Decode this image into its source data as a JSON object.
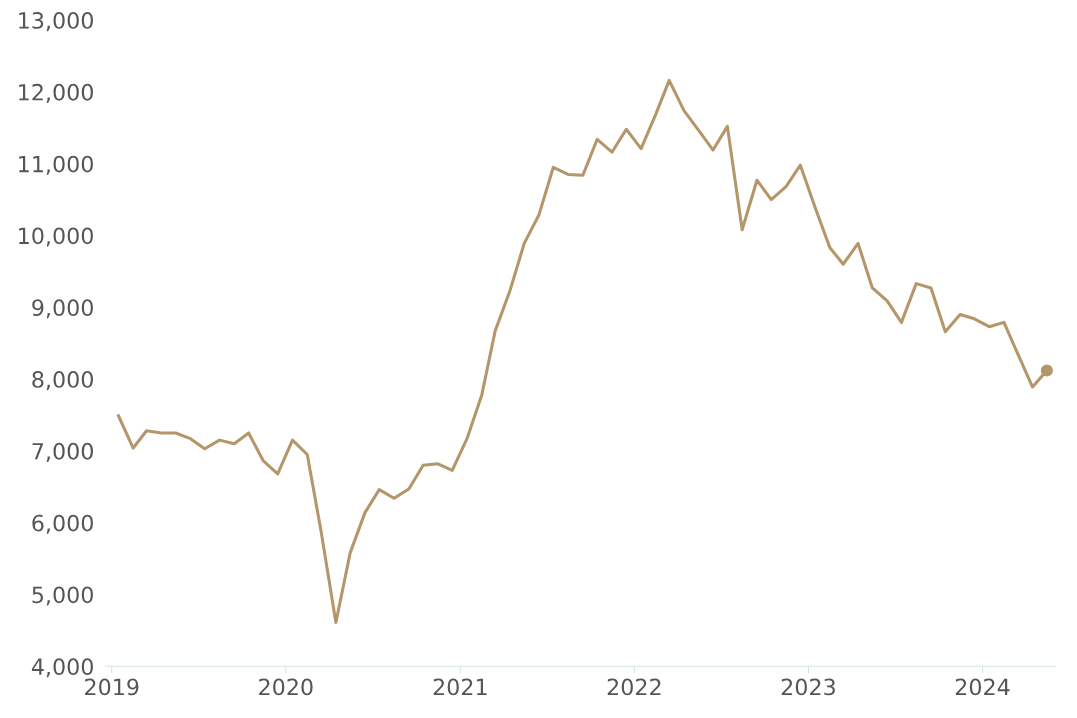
{
  "chart_data": {
    "type": "line",
    "line_style": "solid",
    "marker": "none",
    "grid": false,
    "x": [
      "2019-01-15",
      "2019-02-15",
      "2019-03-15",
      "2019-04-15",
      "2019-05-15",
      "2019-06-15",
      "2019-07-15",
      "2019-08-15",
      "2019-09-15",
      "2019-10-15",
      "2019-11-15",
      "2019-12-15",
      "2020-01-15",
      "2020-02-15",
      "2020-03-15",
      "2020-04-15",
      "2020-05-15",
      "2020-06-15",
      "2020-07-15",
      "2020-08-15",
      "2020-09-15",
      "2020-10-15",
      "2020-11-15",
      "2020-12-15",
      "2021-01-15",
      "2021-02-15",
      "2021-03-15",
      "2021-04-15",
      "2021-05-15",
      "2021-06-15",
      "2021-07-15",
      "2021-08-15",
      "2021-09-15",
      "2021-10-15",
      "2021-11-15",
      "2021-12-15",
      "2022-01-15",
      "2022-02-15",
      "2022-03-15",
      "2022-04-15",
      "2022-05-15",
      "2022-06-15",
      "2022-07-15",
      "2022-08-15",
      "2022-09-15",
      "2022-10-15",
      "2022-11-15",
      "2022-12-15",
      "2023-01-15",
      "2023-02-15",
      "2023-03-15",
      "2023-04-15",
      "2023-05-15",
      "2023-06-15",
      "2023-07-15",
      "2023-08-15",
      "2023-09-15",
      "2023-10-15",
      "2023-11-15",
      "2023-12-15",
      "2024-01-15",
      "2024-02-15",
      "2024-03-15",
      "2024-04-15",
      "2024-05-15"
    ],
    "series": [
      {
        "color": "#b5966a",
        "values": [
          7490,
          7040,
          7280,
          7250,
          7250,
          7170,
          7030,
          7150,
          7100,
          7250,
          6860,
          6680,
          7150,
          6950,
          5880,
          4610,
          5580,
          6140,
          6460,
          6340,
          6470,
          6800,
          6820,
          6730,
          7170,
          7780,
          8670,
          9230,
          9890,
          10290,
          10950,
          10850,
          10840,
          11340,
          11160,
          11480,
          11210,
          11690,
          12160,
          11740,
          11470,
          11190,
          11520,
          10080,
          10770,
          10500,
          10680,
          10980,
          10390,
          9830,
          9600,
          9890,
          9270,
          9090,
          8790,
          9330,
          9270,
          8660,
          8900,
          8840,
          8730,
          8790,
          8350,
          7890,
          8120
        ]
      },
      {
        "type": "scatter",
        "marker": "circle",
        "color": "#b5966a",
        "x": [
          "2024-05-15"
        ],
        "values": [
          8120
        ]
      }
    ],
    "xlim": [
      "2018-12-19",
      "2024-06-02"
    ],
    "xticks": [
      {
        "value": "2019-01-01",
        "label": "2019"
      },
      {
        "value": "2020-01-01",
        "label": "2020"
      },
      {
        "value": "2021-01-01",
        "label": "2021"
      },
      {
        "value": "2022-01-01",
        "label": "2022"
      },
      {
        "value": "2023-01-01",
        "label": "2023"
      },
      {
        "value": "2024-01-01",
        "label": "2024"
      }
    ],
    "ylim": [
      4000,
      13000
    ],
    "yticks": [
      {
        "value": 4000,
        "label": "4,000"
      },
      {
        "value": 5000,
        "label": "5,000"
      },
      {
        "value": 6000,
        "label": "6,000"
      },
      {
        "value": 7000,
        "label": "7,000"
      },
      {
        "value": 8000,
        "label": "8,000"
      },
      {
        "value": 9000,
        "label": "9,000"
      },
      {
        "value": 10000,
        "label": "10,000"
      },
      {
        "value": 11000,
        "label": "11,000"
      },
      {
        "value": 12000,
        "label": "12,000"
      },
      {
        "value": 13000,
        "label": "13,000"
      }
    ]
  }
}
